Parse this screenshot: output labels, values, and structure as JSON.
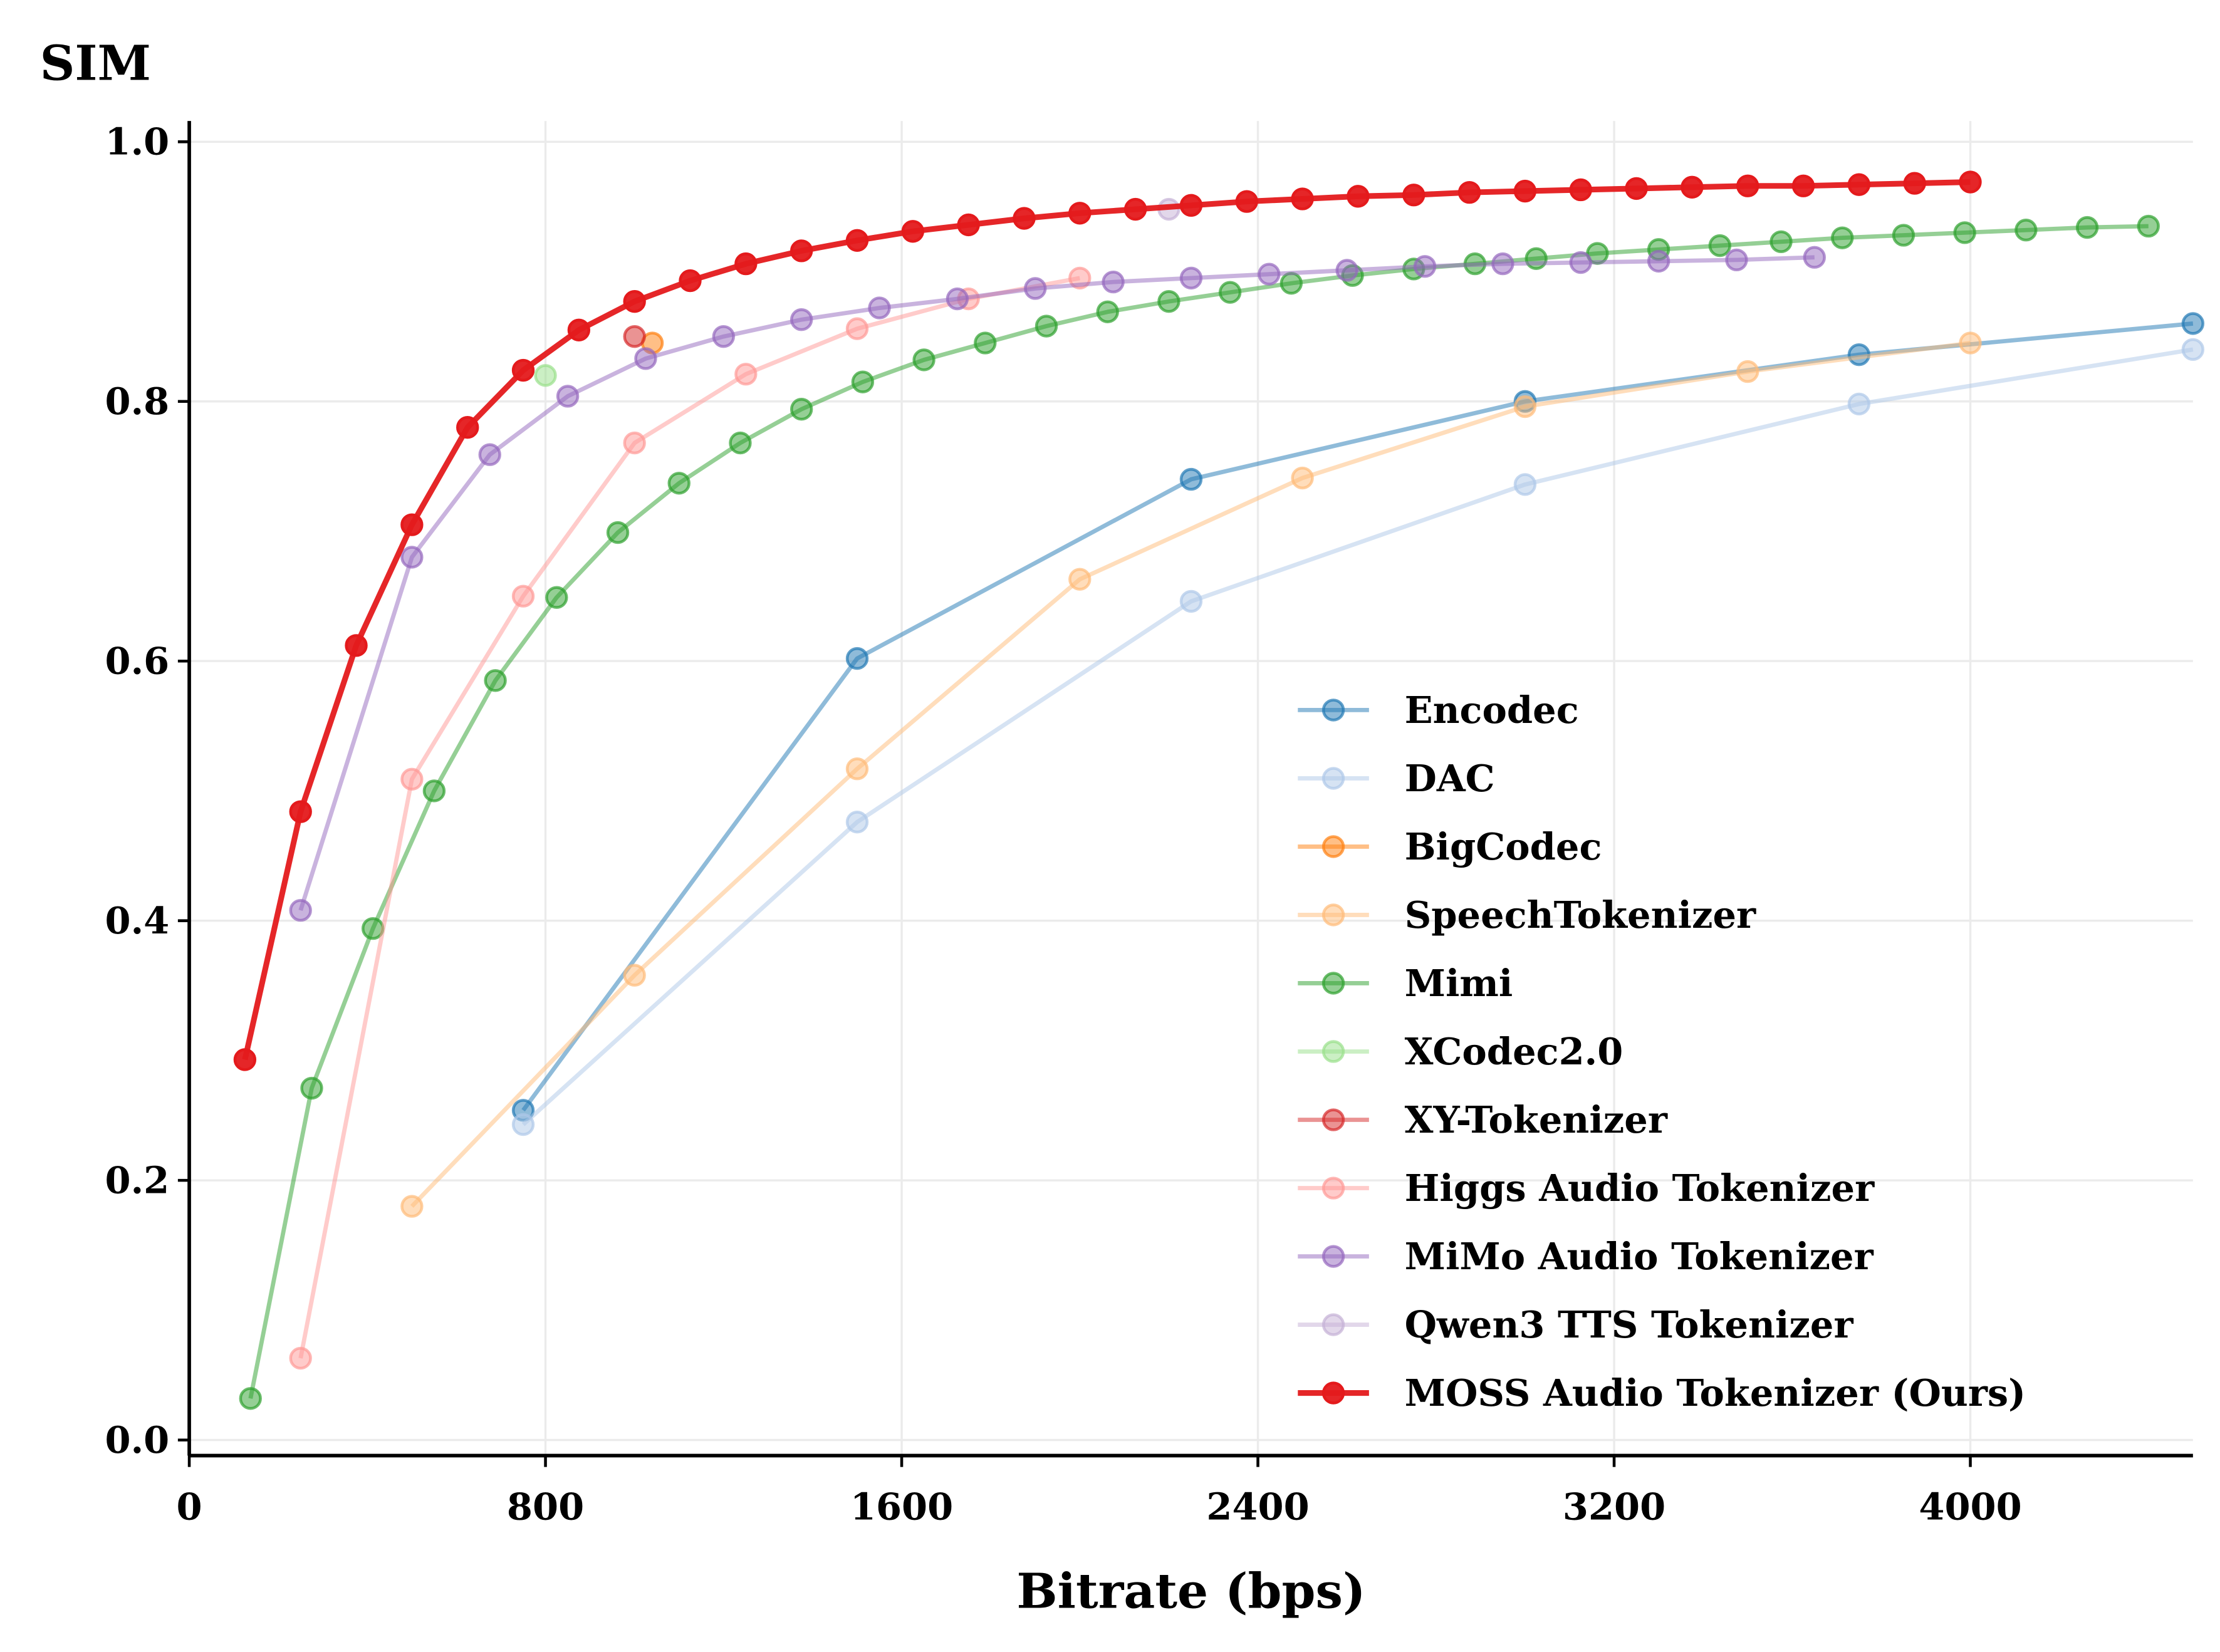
{
  "chart_data": {
    "type": "line",
    "title": "",
    "xlabel": "Bitrate (bps)",
    "ylabel": "SIM",
    "xlim": [
      0,
      4500
    ],
    "ylim": [
      -0.012,
      1.016
    ],
    "xticks": [
      0,
      800,
      1600,
      2400,
      3200,
      4000
    ],
    "xtick_labels": [
      "0",
      "800",
      "1600",
      "2400",
      "3200",
      "4000"
    ],
    "yticks": [
      0.0,
      0.2,
      0.4,
      0.6,
      0.8,
      1.0
    ],
    "ytick_labels": [
      "0.0",
      "0.2",
      "0.4",
      "0.6",
      "0.8",
      "1.0"
    ],
    "grid": true,
    "legend_position": "lower-right",
    "series": [
      {
        "name": "Encodec",
        "color": "#1f77b4",
        "x": [
          750,
          1500,
          2250,
          3000,
          3750,
          4500
        ],
        "y": [
          0.254,
          0.602,
          0.74,
          0.8,
          0.836,
          0.86
        ]
      },
      {
        "name": "DAC",
        "color": "#aec7e8",
        "x": [
          750,
          1500,
          2250,
          3000,
          3750,
          4500
        ],
        "y": [
          0.243,
          0.476,
          0.646,
          0.736,
          0.798,
          0.84
        ]
      },
      {
        "name": "BigCodec",
        "color": "#ff7f0e",
        "x": [
          1040
        ],
        "y": [
          0.845
        ]
      },
      {
        "name": "SpeechTokenizer",
        "color": "#ffbb78",
        "x": [
          500,
          1000,
          1500,
          2000,
          2500,
          3000,
          3500,
          4000
        ],
        "y": [
          0.18,
          0.358,
          0.517,
          0.663,
          0.741,
          0.796,
          0.823,
          0.845
        ]
      },
      {
        "name": "Mimi",
        "color": "#2ca02c",
        "x": [
          137.5,
          275,
          412.5,
          550,
          687.5,
          825,
          962.5,
          1100,
          1237.5,
          1375,
          1512.5,
          1650,
          1787.5,
          1925,
          2062.5,
          2200,
          2337.5,
          2475,
          2612.5,
          2750,
          2887.5,
          3025,
          3162.5,
          3300,
          3437.5,
          3575,
          3712.5,
          3850,
          3987.5,
          4125,
          4262.5,
          4400
        ],
        "y": [
          0.032,
          0.271,
          0.394,
          0.5,
          0.585,
          0.649,
          0.699,
          0.737,
          0.768,
          0.794,
          0.815,
          0.832,
          0.845,
          0.858,
          0.869,
          0.877,
          0.884,
          0.891,
          0.897,
          0.902,
          0.906,
          0.91,
          0.914,
          0.917,
          0.92,
          0.923,
          0.926,
          0.928,
          0.93,
          0.932,
          0.934,
          0.935
        ]
      },
      {
        "name": "XCodec2.0",
        "color": "#98df8a",
        "x": [
          800
        ],
        "y": [
          0.82
        ]
      },
      {
        "name": "XY-Tokenizer",
        "color": "#d62728",
        "x": [
          1000
        ],
        "y": [
          0.85
        ]
      },
      {
        "name": "Higgs Audio Tokenizer",
        "color": "#ff9896",
        "x": [
          250,
          500,
          750,
          1000,
          1250,
          1500,
          1750,
          2000
        ],
        "y": [
          0.063,
          0.509,
          0.65,
          0.768,
          0.821,
          0.856,
          0.879,
          0.895
        ]
      },
      {
        "name": "MiMo Audio Tokenizer",
        "color": "#9467bd",
        "x": [
          250,
          500,
          675,
          850,
          1025,
          1200,
          1375,
          1550,
          1725,
          1900,
          2075,
          2250,
          2425,
          2600,
          2775,
          2950,
          3125,
          3300,
          3475,
          3650
        ],
        "y": [
          0.408,
          0.68,
          0.759,
          0.804,
          0.833,
          0.85,
          0.863,
          0.872,
          0.879,
          0.887,
          0.892,
          0.895,
          0.898,
          0.901,
          0.904,
          0.906,
          0.907,
          0.908,
          0.909,
          0.911
        ]
      },
      {
        "name": "Qwen3 TTS Tokenizer",
        "color": "#c5b0d5",
        "x": [
          2200
        ],
        "y": [
          0.948
        ]
      },
      {
        "name": "MOSS Audio Tokenizer (Ours)",
        "color": "#e41a1c",
        "x": [
          125,
          250,
          375,
          500,
          625,
          750,
          875,
          1000,
          1125,
          1250,
          1375,
          1500,
          1625,
          1750,
          1875,
          2000,
          2125,
          2250,
          2375,
          2500,
          2625,
          2750,
          2875,
          3000,
          3125,
          3250,
          3375,
          3500,
          3625,
          3750,
          3875,
          4000
        ],
        "y": [
          0.293,
          0.484,
          0.612,
          0.705,
          0.78,
          0.824,
          0.855,
          0.877,
          0.893,
          0.906,
          0.916,
          0.924,
          0.931,
          0.936,
          0.941,
          0.945,
          0.948,
          0.951,
          0.954,
          0.956,
          0.958,
          0.959,
          0.961,
          0.962,
          0.963,
          0.964,
          0.965,
          0.966,
          0.966,
          0.967,
          0.968,
          0.969
        ]
      }
    ]
  }
}
